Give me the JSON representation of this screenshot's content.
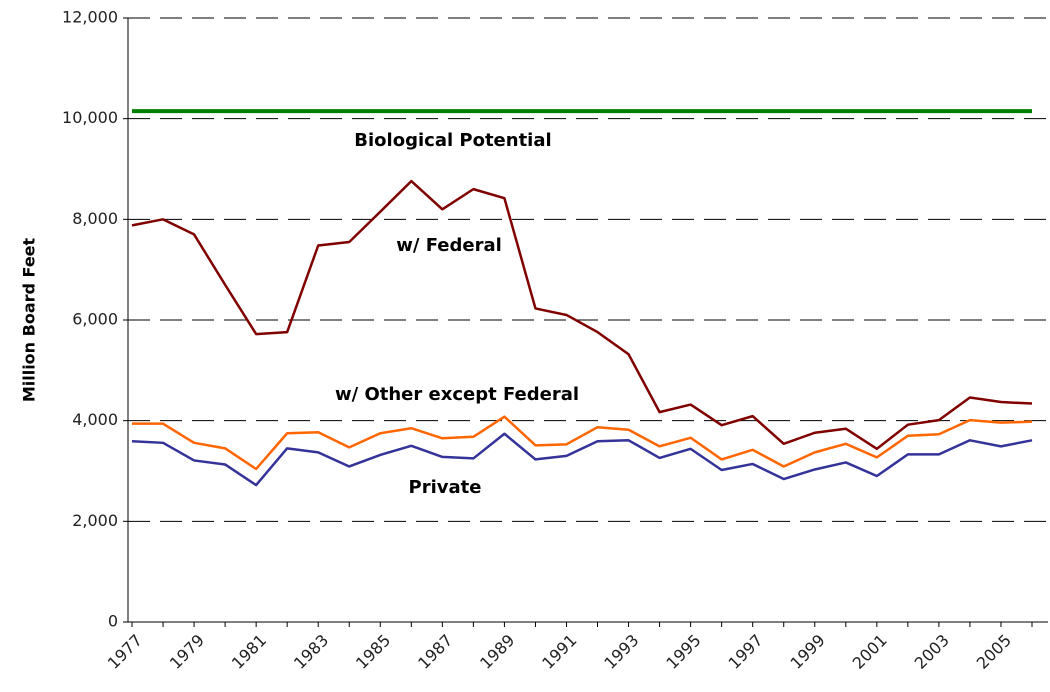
{
  "chart_data": {
    "type": "line",
    "y_label": "Million Board Feet",
    "annotations": [
      "Biological Potential",
      "w/ Federal",
      "w/ Other except Federal",
      "Private"
    ],
    "categories": [
      "1977",
      null,
      "1979",
      null,
      "1981",
      null,
      "1983",
      null,
      "1985",
      null,
      "1987",
      null,
      "1989",
      null,
      "1991",
      null,
      "1993",
      null,
      "1995",
      null,
      "1997",
      null,
      "1999",
      null,
      "2001",
      null,
      "2003",
      null,
      "2005",
      null
    ],
    "series": [
      {
        "name": "Biological Potential",
        "color": "#008000",
        "width": 4,
        "values": [
          10150,
          10150,
          10150,
          10150,
          10150,
          10150,
          10150,
          10150,
          10150,
          10150,
          10150,
          10150,
          10150,
          10150,
          10150,
          10150,
          10150,
          10150,
          10150,
          10150,
          10150,
          10150,
          10150,
          10150,
          10150,
          10150,
          10150,
          10150,
          10150,
          10150
        ]
      },
      {
        "name": "w/ Federal",
        "color": "#800000",
        "width": 2.5,
        "values": [
          7880,
          8000,
          7700,
          6700,
          5720,
          5760,
          7480,
          7550,
          8150,
          8760,
          8200,
          8600,
          8420,
          6230,
          6100,
          5760,
          5320,
          4170,
          4320,
          3910,
          4090,
          3540,
          3760,
          3840,
          3440,
          3920,
          4010,
          4460,
          4370,
          4340
        ]
      },
      {
        "name": "w/ Other except Federal",
        "color": "#ff6600",
        "width": 2.5,
        "values": [
          3940,
          3940,
          3560,
          3450,
          3040,
          3750,
          3770,
          3470,
          3750,
          3850,
          3650,
          3680,
          4080,
          3510,
          3530,
          3870,
          3820,
          3490,
          3660,
          3230,
          3420,
          3090,
          3370,
          3540,
          3270,
          3700,
          3730,
          4010,
          3960,
          3980
        ]
      },
      {
        "name": "Private",
        "color": "#333399",
        "width": 2.5,
        "values": [
          3590,
          3560,
          3210,
          3130,
          2720,
          3450,
          3370,
          3090,
          3320,
          3500,
          3280,
          3250,
          3740,
          3230,
          3300,
          3590,
          3610,
          3260,
          3440,
          3020,
          3140,
          2840,
          3030,
          3170,
          2900,
          3330,
          3330,
          3610,
          3490,
          3610
        ]
      }
    ],
    "ylim": [
      0,
      12000
    ],
    "yticks": [
      0,
      {
        "value": 2000,
        "label": "2,000"
      },
      {
        "value": 4000,
        "label": "4,000"
      },
      {
        "value": 6000,
        "label": "6,000"
      },
      {
        "value": 8000,
        "label": "8,000"
      },
      {
        "value": 10000,
        "label": "10,000"
      },
      {
        "value": 12000,
        "label": "12,000"
      }
    ],
    "grid": true
  }
}
